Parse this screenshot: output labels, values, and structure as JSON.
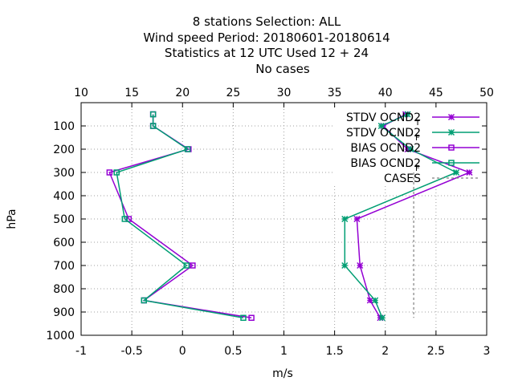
{
  "chart_data": {
    "type": "line",
    "title_lines": [
      "8 stations Selection: ALL",
      "Wind speed  Period: 20180601-20180614",
      "Statistics at 12 UTC  Used  12 + 24",
      "No cases"
    ],
    "xlabel": "m/s",
    "ylabel": "hPa",
    "xlim": [
      -1,
      3
    ],
    "x_ticks": [
      "-1",
      "-0.5",
      "0",
      "0.5",
      "1",
      "1.5",
      "2",
      "2.5",
      "3"
    ],
    "x2lim": [
      10,
      50
    ],
    "x2_ticks": [
      "10",
      "15",
      "20",
      "25",
      "30",
      "35",
      "40",
      "45",
      "50"
    ],
    "ylim": [
      1000,
      0
    ],
    "y_ticks": [
      "100",
      "200",
      "300",
      "400",
      "500",
      "600",
      "700",
      "800",
      "900",
      "1000"
    ],
    "grid": true,
    "legend_position": "top-right",
    "colors": {
      "purple": "#9400d3",
      "teal": "#009e73",
      "cases": "#808080"
    },
    "series": [
      {
        "name": "STDV OCND2",
        "color": "#9400d3",
        "marker": "star",
        "x": [
          2.2,
          1.98,
          2.22,
          2.83,
          1.72,
          1.75,
          1.85,
          1.95
        ],
        "y": [
          50,
          100,
          200,
          300,
          500,
          700,
          850,
          925
        ]
      },
      {
        "name": "STDV OCND2",
        "color": "#009e73",
        "marker": "star",
        "x": [
          2.22,
          1.96,
          2.25,
          2.7,
          1.6,
          1.6,
          1.9,
          1.97
        ],
        "y": [
          50,
          100,
          200,
          300,
          500,
          700,
          850,
          925
        ]
      },
      {
        "name": "BIAS OCND2",
        "color": "#9400d3",
        "marker": "square",
        "x": [
          -0.29,
          -0.29,
          0.06,
          -0.72,
          -0.53,
          0.1,
          -0.38,
          0.68
        ],
        "y": [
          50,
          100,
          200,
          300,
          500,
          700,
          850,
          925
        ]
      },
      {
        "name": "BIAS OCND2",
        "color": "#009e73",
        "marker": "square",
        "x": [
          -0.29,
          -0.29,
          0.05,
          -0.65,
          -0.57,
          0.04,
          -0.38,
          0.6
        ],
        "y": [
          50,
          100,
          200,
          300,
          500,
          700,
          850,
          925
        ]
      },
      {
        "name": "CASES",
        "color": "#808080",
        "dashed": true,
        "x": [
          2.28,
          2.28
        ],
        "y": [
          300,
          925
        ]
      }
    ],
    "annotations": [
      "T",
      "F",
      "F"
    ]
  }
}
